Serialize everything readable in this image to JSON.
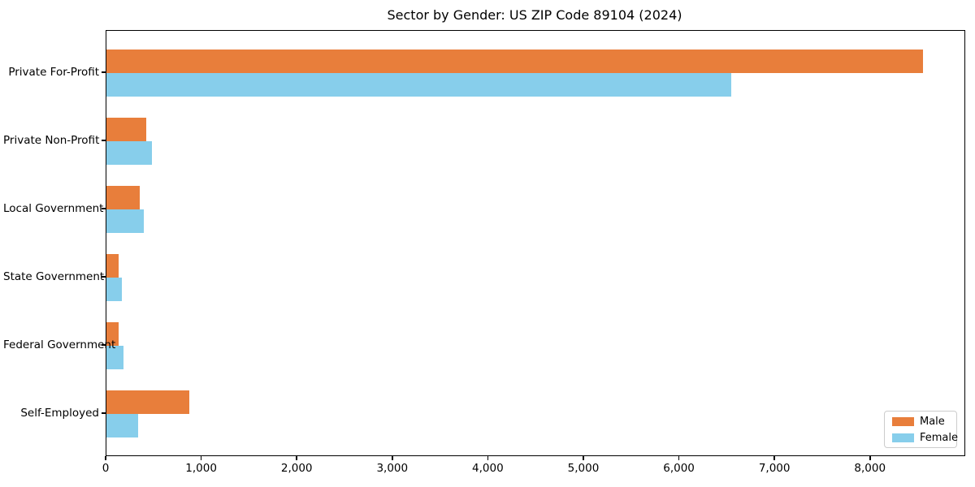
{
  "title": "Sector by Gender: US ZIP Code 89104 (2024)",
  "chart_data": {
    "type": "bar",
    "orientation": "horizontal",
    "title": "Sector by Gender: US ZIP Code 89104 (2024)",
    "categories": [
      "Private For-Profit",
      "Private Non-Profit",
      "Local Government",
      "State Government",
      "Federal Government",
      "Self-Employed"
    ],
    "series": [
      {
        "name": "Male",
        "color": "#e87e3b",
        "values": [
          8550,
          418,
          346,
          128,
          130,
          870
        ]
      },
      {
        "name": "Female",
        "color": "#87ceeb",
        "values": [
          6540,
          478,
          391,
          164,
          176,
          332
        ]
      }
    ],
    "xlabel": "",
    "ylabel": "",
    "xlim": [
      0,
      8980
    ],
    "xticks": [
      0,
      1000,
      2000,
      3000,
      4000,
      5000,
      6000,
      7000,
      8000
    ],
    "xtick_labels": [
      "0",
      "1,000",
      "2,000",
      "3,000",
      "4,000",
      "5,000",
      "6,000",
      "7,000",
      "8,000"
    ],
    "grid": false,
    "legend": {
      "position": "lower right",
      "entries": [
        "Male",
        "Female"
      ]
    },
    "colors": {
      "spine": "#000000",
      "background": "#ffffff",
      "legend_border": "#cccccc"
    }
  }
}
